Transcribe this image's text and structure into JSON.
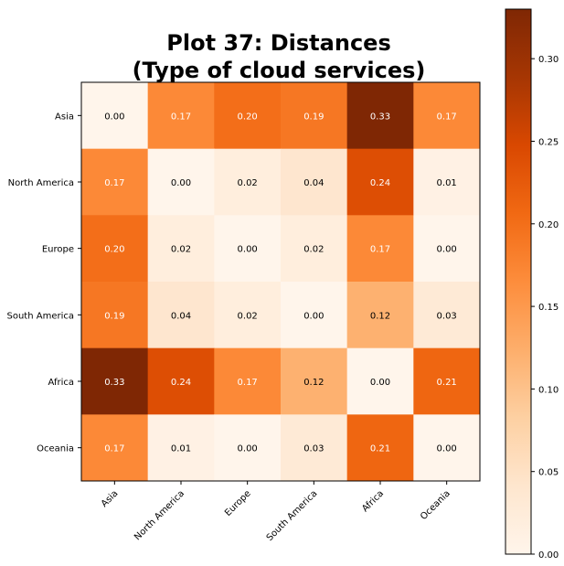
{
  "chart_data": {
    "type": "heatmap",
    "title_lines": [
      "Plot 37: Distances",
      "(Type of cloud services)"
    ],
    "rows": [
      "Asia",
      "North America",
      "Europe",
      "South America",
      "Africa",
      "Oceania"
    ],
    "cols": [
      "Asia",
      "North America",
      "Europe",
      "South America",
      "Africa",
      "Oceania"
    ],
    "values": [
      [
        0.0,
        0.17,
        0.2,
        0.19,
        0.33,
        0.17
      ],
      [
        0.17,
        0.0,
        0.02,
        0.04,
        0.24,
        0.01
      ],
      [
        0.2,
        0.02,
        0.0,
        0.02,
        0.17,
        0.0
      ],
      [
        0.19,
        0.04,
        0.02,
        0.0,
        0.12,
        0.03
      ],
      [
        0.33,
        0.24,
        0.17,
        0.12,
        0.0,
        0.21
      ],
      [
        0.17,
        0.01,
        0.0,
        0.03,
        0.21,
        0.0
      ]
    ],
    "labels": [
      [
        "0.00",
        "0.17",
        "0.20",
        "0.19",
        "0.33",
        "0.17"
      ],
      [
        "0.17",
        "0.00",
        "0.02",
        "0.04",
        "0.24",
        "0.01"
      ],
      [
        "0.20",
        "0.02",
        "0.00",
        "0.02",
        "0.17",
        "0.00"
      ],
      [
        "0.19",
        "0.04",
        "0.02",
        "0.00",
        "0.12",
        "0.03"
      ],
      [
        "0.33",
        "0.24",
        "0.17",
        "0.12",
        "0.00",
        "0.21"
      ],
      [
        "0.17",
        "0.01",
        "0.00",
        "0.03",
        "0.21",
        "0.00"
      ]
    ],
    "colormap": "Oranges",
    "colorbar": {
      "range": [
        0,
        0.33
      ],
      "ticks": [
        "0.00",
        "0.05",
        "0.10",
        "0.15",
        "0.20",
        "0.25",
        "0.30"
      ]
    },
    "label_colors": {
      "dark": "#000000",
      "light": "#ffffff"
    }
  }
}
